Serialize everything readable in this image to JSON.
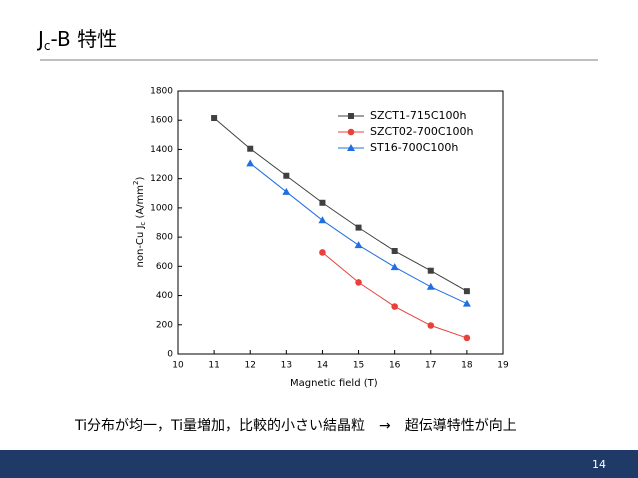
{
  "slide": {
    "title_parts": [
      "J",
      "c",
      "-B 特性"
    ],
    "caption": "Ti分布が均一，Ti量増加，比較的小さい結晶粒　→　超伝導特性が向上",
    "page_number": "14"
  },
  "chart_data": {
    "type": "line",
    "xlabel": "Magnetic field (T)",
    "ylabel_parts": [
      "non-Cu J",
      "c",
      " (A/mm",
      "2",
      ")"
    ],
    "xlim": [
      10,
      19
    ],
    "xticks": [
      10,
      11,
      12,
      13,
      14,
      15,
      16,
      17,
      18,
      19
    ],
    "ylim": [
      0,
      1800
    ],
    "yticks": [
      0,
      200,
      400,
      600,
      800,
      1000,
      1200,
      1400,
      1600,
      1800
    ],
    "grid": false,
    "legend": "upper right",
    "series": [
      {
        "name": "SZCT1-715C100h",
        "color": "#404040",
        "marker": "square",
        "x": [
          11,
          12,
          13,
          14,
          15,
          16,
          17,
          18
        ],
        "values": [
          1615,
          1405,
          1220,
          1035,
          865,
          705,
          570,
          430
        ]
      },
      {
        "name": "SZCT02-700C100h",
        "color": "#e8403a",
        "marker": "circle",
        "x": [
          14,
          15,
          16,
          17,
          18
        ],
        "values": [
          695,
          490,
          325,
          195,
          110
        ]
      },
      {
        "name": "ST16-700C100h",
        "color": "#1f6fe0",
        "marker": "triangle",
        "x": [
          12,
          13,
          14,
          15,
          16,
          17,
          18
        ],
        "values": [
          1305,
          1110,
          915,
          745,
          595,
          460,
          345
        ]
      }
    ]
  }
}
